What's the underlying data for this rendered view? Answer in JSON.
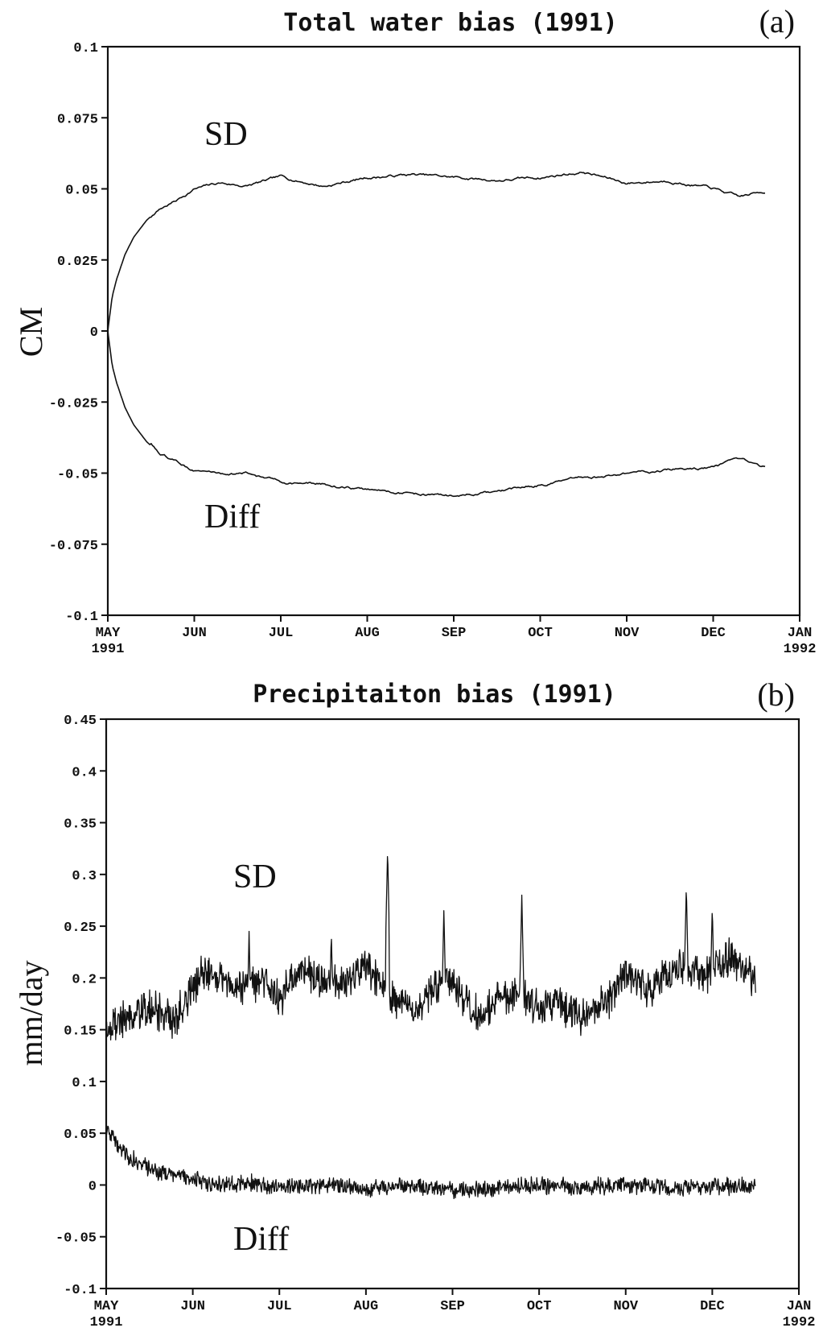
{
  "chart_data": [
    {
      "type": "line",
      "title": "Total water bias (1991)",
      "panel_label": "(a)",
      "xlabel": "",
      "ylabel": "CM",
      "ylim": [
        -0.1,
        0.1
      ],
      "yticks": [
        0.1,
        0.075,
        0.05,
        0.025,
        0,
        -0.025,
        -0.05,
        -0.075,
        -0.1
      ],
      "ytick_labels": [
        "0.1",
        "0.075",
        "0.05",
        "0.025",
        "0",
        "-0.025",
        "-0.05",
        "-0.075",
        "-0.1"
      ],
      "xticks": [
        "MAY 1991",
        "JUN",
        "JUL",
        "AUG",
        "SEP",
        "OCT",
        "NOV",
        "DEC",
        "JAN 1992"
      ],
      "grid": false,
      "annotations": [
        "SD",
        "Diff"
      ],
      "series": [
        {
          "key": "SD",
          "x": [
            0,
            0.05,
            0.1,
            0.2,
            0.3,
            0.45,
            0.6,
            0.8,
            1.0,
            1.3,
            1.6,
            2.0,
            2.5,
            3.0,
            3.5,
            4.0,
            4.5,
            5.0,
            5.5,
            6.0,
            6.5,
            7.0,
            7.3,
            7.6
          ],
          "values": [
            0.0,
            0.012,
            0.018,
            0.027,
            0.033,
            0.039,
            0.043,
            0.046,
            0.05,
            0.052,
            0.051,
            0.054,
            0.051,
            0.054,
            0.055,
            0.054,
            0.053,
            0.054,
            0.056,
            0.052,
            0.053,
            0.05,
            0.047,
            0.049
          ]
        },
        {
          "key": "Diff",
          "x": [
            0,
            0.05,
            0.1,
            0.2,
            0.3,
            0.45,
            0.6,
            0.8,
            1.0,
            1.3,
            1.6,
            2.0,
            2.5,
            3.0,
            3.5,
            4.0,
            4.5,
            5.0,
            5.5,
            6.0,
            6.5,
            7.0,
            7.3,
            7.6
          ],
          "values": [
            0.0,
            -0.012,
            -0.018,
            -0.027,
            -0.033,
            -0.039,
            -0.043,
            -0.046,
            -0.049,
            -0.05,
            -0.05,
            -0.053,
            -0.054,
            -0.056,
            -0.057,
            -0.058,
            -0.057,
            -0.054,
            -0.052,
            -0.05,
            -0.049,
            -0.048,
            -0.046,
            -0.048
          ]
        }
      ]
    },
    {
      "type": "line",
      "title": "Precipitaiton bias (1991)",
      "panel_label": "(b)",
      "xlabel": "",
      "ylabel": "mm/day",
      "ylim": [
        -0.1,
        0.45
      ],
      "yticks": [
        0.45,
        0.4,
        0.35,
        0.3,
        0.25,
        0.2,
        0.15,
        0.1,
        0.05,
        0,
        -0.05,
        -0.1
      ],
      "ytick_labels": [
        "0.45",
        "0.4",
        "0.35",
        "0.3",
        "0.25",
        "0.2",
        "0.15",
        "0.1",
        "0.05",
        "0",
        "-0.05",
        "-0.1"
      ],
      "xticks": [
        "MAY 1991",
        "JUN",
        "JUL",
        "AUG",
        "SEP",
        "OCT",
        "NOV",
        "DEC",
        "JAN 1992"
      ],
      "grid": false,
      "annotations": [
        "SD",
        "Diff"
      ],
      "series": [
        {
          "key": "SD",
          "x": [
            0,
            0.2,
            0.5,
            0.8,
            1.0,
            1.2,
            1.5,
            1.8,
            2.0,
            2.3,
            2.6,
            2.85,
            3.0,
            3.3,
            3.6,
            3.9,
            4.0,
            4.3,
            4.5,
            4.8,
            5.0,
            5.2,
            5.5,
            5.8,
            6.0,
            6.3,
            6.6,
            6.9,
            7.2,
            7.5
          ],
          "values": [
            0.15,
            0.16,
            0.17,
            0.16,
            0.19,
            0.21,
            0.19,
            0.2,
            0.18,
            0.21,
            0.19,
            0.2,
            0.21,
            0.18,
            0.17,
            0.2,
            0.19,
            0.16,
            0.18,
            0.19,
            0.17,
            0.18,
            0.16,
            0.18,
            0.2,
            0.19,
            0.21,
            0.2,
            0.22,
            0.2
          ],
          "peaks": [
            [
              3.25,
              0.325
            ],
            [
              3.9,
              0.265
            ],
            [
              4.8,
              0.28
            ],
            [
              6.7,
              0.29
            ],
            [
              2.6,
              0.245
            ],
            [
              1.65,
              0.245
            ],
            [
              7.0,
              0.27
            ]
          ]
        },
        {
          "key": "Diff",
          "x": [
            0,
            0.1,
            0.3,
            0.5,
            0.8,
            1.0,
            1.3,
            1.6,
            2.0,
            2.5,
            3.0,
            3.5,
            4.0,
            4.5,
            5.0,
            5.5,
            6.0,
            6.5,
            7.0,
            7.5
          ],
          "values": [
            0.055,
            0.04,
            0.025,
            0.015,
            0.008,
            0.005,
            0.0,
            0.002,
            -0.002,
            0.0,
            -0.003,
            0.0,
            -0.005,
            -0.003,
            0.0,
            -0.002,
            0.0,
            -0.003,
            -0.002,
            0.0
          ]
        }
      ]
    }
  ]
}
